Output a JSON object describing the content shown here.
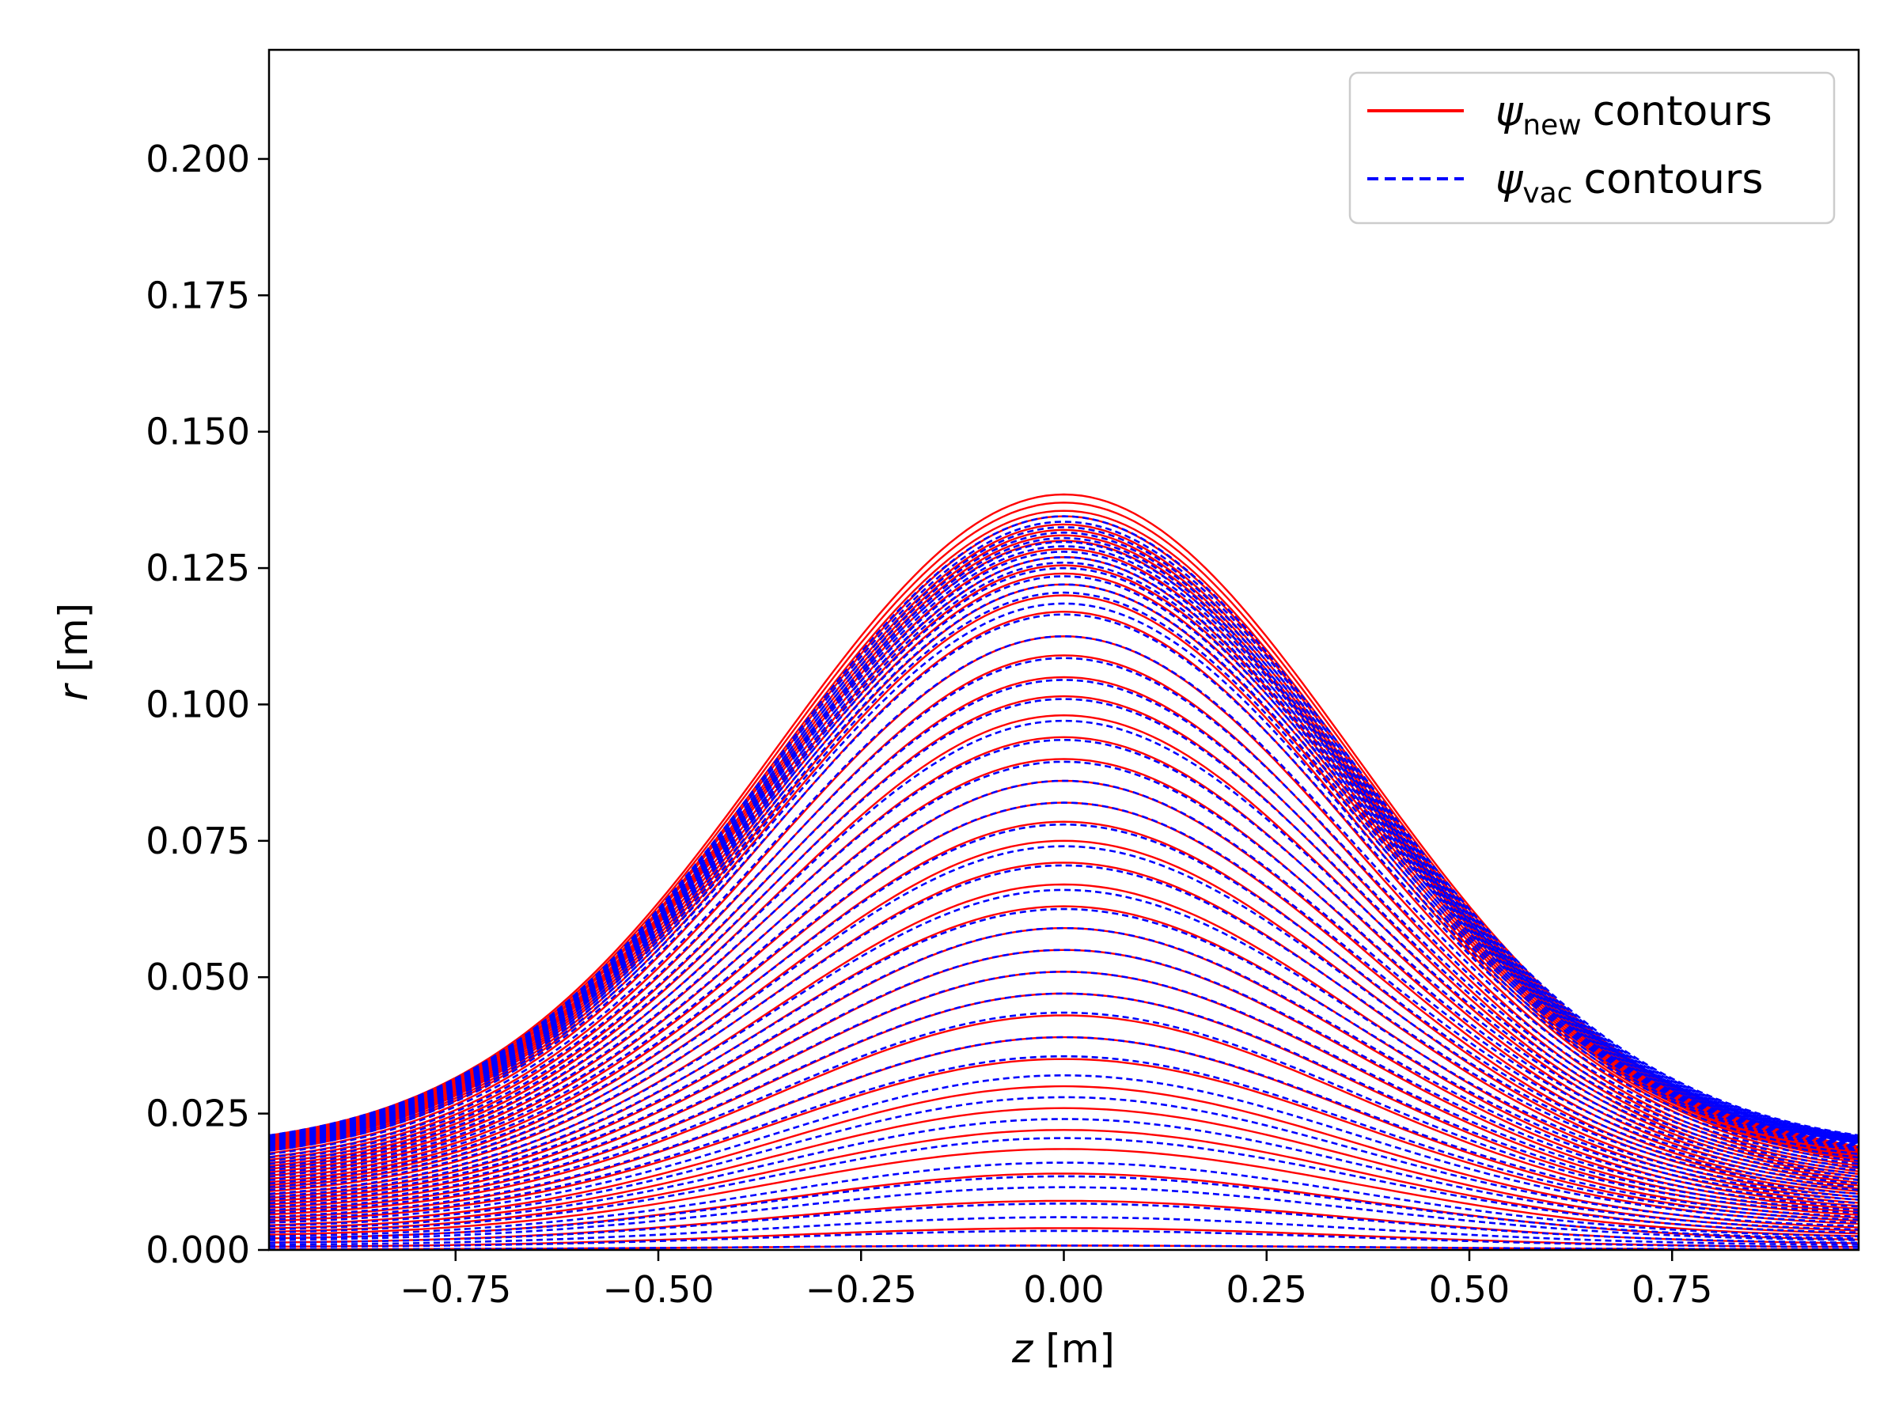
{
  "chart_data": {
    "type": "line",
    "title": "",
    "xlabel": {
      "var": "z",
      "unit": "[m]"
    },
    "ylabel": {
      "var": "r",
      "unit": "[m]"
    },
    "xlim": [
      -0.98,
      0.98
    ],
    "ylim": [
      0.0,
      0.22
    ],
    "xticks": [
      -0.75,
      -0.5,
      -0.25,
      0.0,
      0.25,
      0.5,
      0.75
    ],
    "xtick_labels": [
      "−0.75",
      "−0.50",
      "−0.25",
      "0.00",
      "0.25",
      "0.50",
      "0.75"
    ],
    "yticks": [
      0.0,
      0.025,
      0.05,
      0.075,
      0.1,
      0.125,
      0.15,
      0.175,
      0.2
    ],
    "ytick_labels": [
      "0.000",
      "0.025",
      "0.050",
      "0.075",
      "0.100",
      "0.125",
      "0.150",
      "0.175",
      "0.200"
    ],
    "grid": false,
    "legend": {
      "placement": "top-right",
      "entries": [
        {
          "symbol": "ψ",
          "sub": "new",
          "text": "contours",
          "color": "#ff0000",
          "style": "solid"
        },
        {
          "symbol": "ψ",
          "sub": "vac",
          "text": "contours",
          "color": "#0000ff",
          "style": "dashed"
        }
      ]
    },
    "series": [
      {
        "color": "#ff0000",
        "style": "solid",
        "contour_count": 44,
        "peak_r_at_z0": [
          0.0008,
          0.004,
          0.009,
          0.014,
          0.0185,
          0.022,
          0.026,
          0.03,
          0.035,
          0.039,
          0.043,
          0.047,
          0.051,
          0.055,
          0.059,
          0.063,
          0.067,
          0.071,
          0.075,
          0.0785,
          0.082,
          0.086,
          0.09,
          0.094,
          0.098,
          0.1015,
          0.105,
          0.109,
          0.1125,
          0.117,
          0.12,
          0.122,
          0.124,
          0.1255,
          0.127,
          0.1285,
          0.13,
          0.131,
          0.132,
          0.133,
          0.1345,
          0.1355,
          0.137,
          0.1385
        ],
        "edge_r_at_z_min": 0.021,
        "edge_r_at_z_max": 0.019
      },
      {
        "color": "#0000ff",
        "style": "dashed",
        "contour_count": 48,
        "peak_r_at_z0": [
          0.0008,
          0.0035,
          0.006,
          0.0085,
          0.0115,
          0.0135,
          0.016,
          0.0205,
          0.024,
          0.028,
          0.032,
          0.0355,
          0.039,
          0.0435,
          0.047,
          0.051,
          0.055,
          0.059,
          0.0625,
          0.066,
          0.0705,
          0.074,
          0.078,
          0.082,
          0.086,
          0.0895,
          0.0935,
          0.097,
          0.101,
          0.1045,
          0.1085,
          0.1125,
          0.1165,
          0.1185,
          0.1205,
          0.122,
          0.1235,
          0.125,
          0.126,
          0.127,
          0.128,
          0.129,
          0.1298,
          0.1305,
          0.1315,
          0.1325,
          0.1335,
          0.1345
        ],
        "edge_r_at_z_min": 0.021,
        "edge_r_at_z_max": 0.021
      }
    ]
  }
}
